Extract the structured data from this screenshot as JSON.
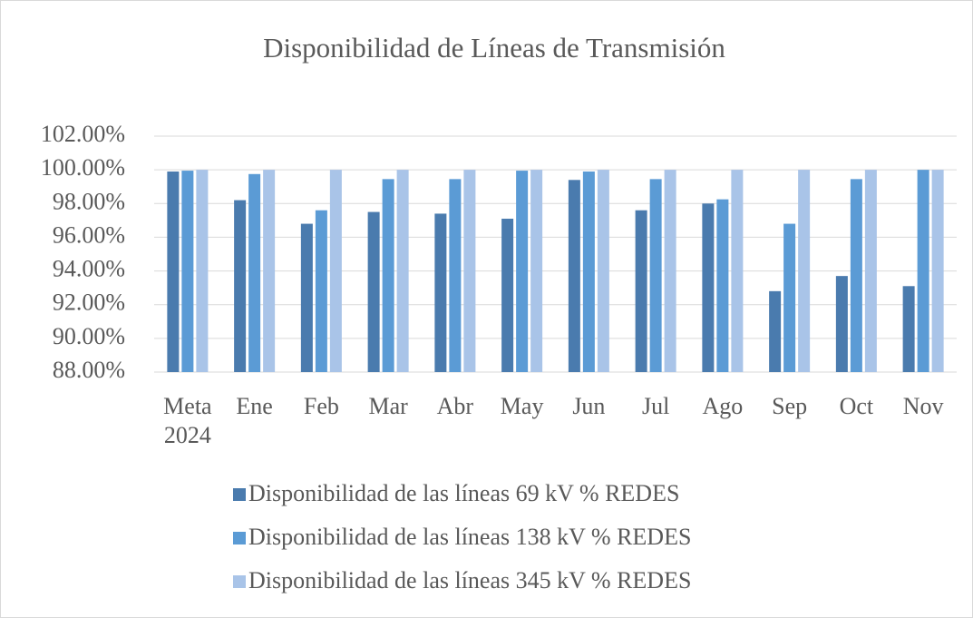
{
  "chart_data": {
    "type": "bar",
    "title": "Disponibilidad de Líneas de Transmisión",
    "categories": [
      "Meta 2024",
      "Ene",
      "Feb",
      "Mar",
      "Abr",
      "May",
      "Jun",
      "Jul",
      "Ago",
      "Sep",
      "Oct",
      "Nov"
    ],
    "series": [
      {
        "name": "Disponibilidad de las líneas 69 kV % REDES",
        "color": "#4a7bae",
        "values": [
          99.9,
          98.2,
          96.8,
          97.5,
          97.4,
          97.1,
          99.4,
          97.6,
          98.0,
          92.8,
          93.7,
          93.1
        ]
      },
      {
        "name": "Disponibilidad de las líneas 138 kV % REDES",
        "color": "#5b9bd5",
        "values": [
          99.95,
          99.75,
          97.6,
          99.45,
          99.45,
          99.95,
          99.9,
          99.45,
          98.25,
          96.8,
          99.45,
          100
        ]
      },
      {
        "name": "Disponibilidad de las líneas 345 kV % REDES",
        "color": "#a9c4e8",
        "values": [
          100,
          100,
          100,
          100,
          100,
          100,
          100,
          100,
          100,
          100,
          100,
          100
        ]
      }
    ],
    "ylim": [
      88,
      102
    ],
    "yticks": [
      {
        "value": 88,
        "label": "88.00%"
      },
      {
        "value": 90,
        "label": "90.00%"
      },
      {
        "value": 92,
        "label": "92.00%"
      },
      {
        "value": 94,
        "label": "94.00%"
      },
      {
        "value": 96,
        "label": "96.00%"
      },
      {
        "value": 98,
        "label": "98.00%"
      },
      {
        "value": 100,
        "label": "100.00%"
      },
      {
        "value": 102,
        "label": "102.00%"
      }
    ],
    "grid": true,
    "legend": "bottom"
  }
}
